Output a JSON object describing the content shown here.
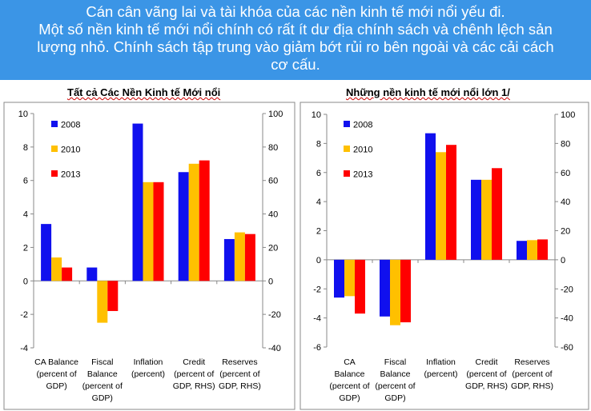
{
  "banner": {
    "line1": "Cán cân vãng lai và tài khóa của các nền kinh tế mới nổi yếu đi.",
    "line2": "Một số nền kinh tế mới nổi chính có rất ít dư địa chính sách và chênh lệch sản",
    "line3": "lượng nhỏ. Chính sách tập trung vào giảm bớt rủi ro bên ngoài và các cải cách",
    "line4": "cơ cấu."
  },
  "colors": {
    "2008": "#1010ee",
    "2010": "#ffc000",
    "2013": "#ff0000",
    "banner": "#3b95e6"
  },
  "chart_data": [
    {
      "type": "bar",
      "title": "Tất cả Các Nền Kinh tế Mới nổi",
      "categories": [
        [
          "CA Balance",
          "(percent of",
          "GDP)"
        ],
        [
          "Fiscal",
          "Balance",
          "(percent of",
          "GDP)"
        ],
        [
          "Inflation",
          "(percent)"
        ],
        [
          "Credit",
          "(percent of",
          "GDP, RHS)"
        ],
        [
          "Reserves",
          "(percent of",
          "GDP, RHS)"
        ]
      ],
      "series": [
        {
          "name": "2008",
          "values": [
            3.4,
            0.8,
            9.4,
            6.5,
            2.5
          ]
        },
        {
          "name": "2010",
          "values": [
            1.4,
            -2.5,
            5.9,
            7.0,
            2.9
          ]
        },
        {
          "name": "2013",
          "values": [
            0.8,
            -1.8,
            5.9,
            7.2,
            2.8
          ]
        }
      ],
      "ylim_left": [
        -4,
        10
      ],
      "yticks_left": [
        "10",
        "8",
        "6",
        "4",
        "2",
        "0",
        "-2",
        "-4"
      ],
      "ylim_right": [
        -40,
        100
      ],
      "yticks_right": [
        "100",
        "80",
        "60",
        "40",
        "20",
        "0",
        "-20",
        "-40"
      ],
      "legend": [
        "2008",
        "2010",
        "2013"
      ]
    },
    {
      "type": "bar",
      "title": "Những nền kinh tế mới nổi lớn 1/",
      "categories": [
        [
          "CA",
          "Balance",
          "(percent of",
          "GDP)"
        ],
        [
          "Fiscal",
          "Balance",
          "(percent of",
          "GDP)"
        ],
        [
          "Inflation",
          "(percent)"
        ],
        [
          "Credit",
          "(percent of",
          "GDP, RHS)"
        ],
        [
          "Reserves",
          "(percent of",
          "GDP, RHS)"
        ]
      ],
      "series": [
        {
          "name": "2008",
          "values": [
            -2.6,
            -3.9,
            8.7,
            5.5,
            1.3
          ]
        },
        {
          "name": "2010",
          "values": [
            -2.5,
            -4.5,
            7.4,
            5.5,
            1.35
          ]
        },
        {
          "name": "2013",
          "values": [
            -3.7,
            -4.3,
            7.9,
            6.3,
            1.4
          ]
        }
      ],
      "ylim_left": [
        -6,
        10
      ],
      "yticks_left": [
        "10",
        "8",
        "6",
        "4",
        "2",
        "0",
        "-2",
        "-4",
        "-6"
      ],
      "ylim_right": [
        -60,
        100
      ],
      "yticks_right": [
        "100",
        "80",
        "60",
        "40",
        "20",
        "0",
        "-20",
        "-40",
        "-60"
      ],
      "legend": [
        "2008",
        "2010",
        "2013"
      ]
    }
  ]
}
